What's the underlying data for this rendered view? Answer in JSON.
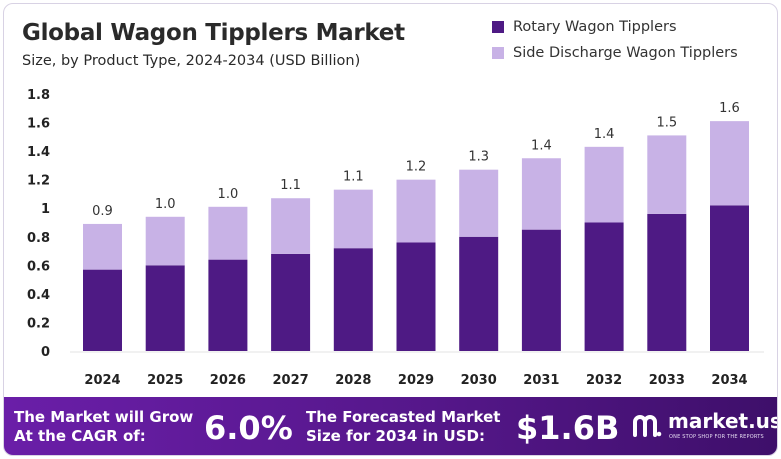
{
  "header": {
    "title": "Global Wagon Tipplers Market",
    "subtitle": "Size, by Product Type, 2024-2034 (USD Billion)"
  },
  "colors": {
    "rotary": "#4e1a84",
    "side": "#c8b2e6",
    "footer": "#5a188f"
  },
  "chart_data": {
    "type": "bar",
    "stacked": true,
    "categories": [
      "2024",
      "2025",
      "2026",
      "2027",
      "2028",
      "2029",
      "2030",
      "2031",
      "2032",
      "2033",
      "2034"
    ],
    "series": [
      {
        "name": "Rotary Wagon Tipplers",
        "values": [
          0.57,
          0.6,
          0.64,
          0.68,
          0.72,
          0.76,
          0.8,
          0.85,
          0.9,
          0.96,
          1.02
        ]
      },
      {
        "name": "Side Discharge Wagon Tipplers",
        "values": [
          0.32,
          0.34,
          0.37,
          0.39,
          0.41,
          0.44,
          0.47,
          0.5,
          0.53,
          0.55,
          0.59
        ]
      }
    ],
    "totals_labels": [
      "0.9",
      "1.0",
      "1.0",
      "1.1",
      "1.1",
      "1.2",
      "1.3",
      "1.4",
      "1.4",
      "1.5",
      "1.6"
    ],
    "y_ticks": [
      "0",
      "0.2",
      "0.4",
      "0.6",
      "0.8",
      "1",
      "1.2",
      "1.4",
      "1.6",
      "1.8"
    ],
    "ylim": [
      0,
      1.8
    ],
    "grid": false,
    "legend_position": "top-right"
  },
  "footer": {
    "cagr_label_line1": "The Market will Grow",
    "cagr_label_line2": "At the CAGR of:",
    "cagr_value": "6.0%",
    "forecast_label_line1": "The Forecasted Market",
    "forecast_label_line2": "Size for 2034 in USD:",
    "forecast_value": "$1.6B",
    "brand_name": "market.us",
    "brand_tagline": "ONE STOP SHOP FOR THE REPORTS"
  }
}
